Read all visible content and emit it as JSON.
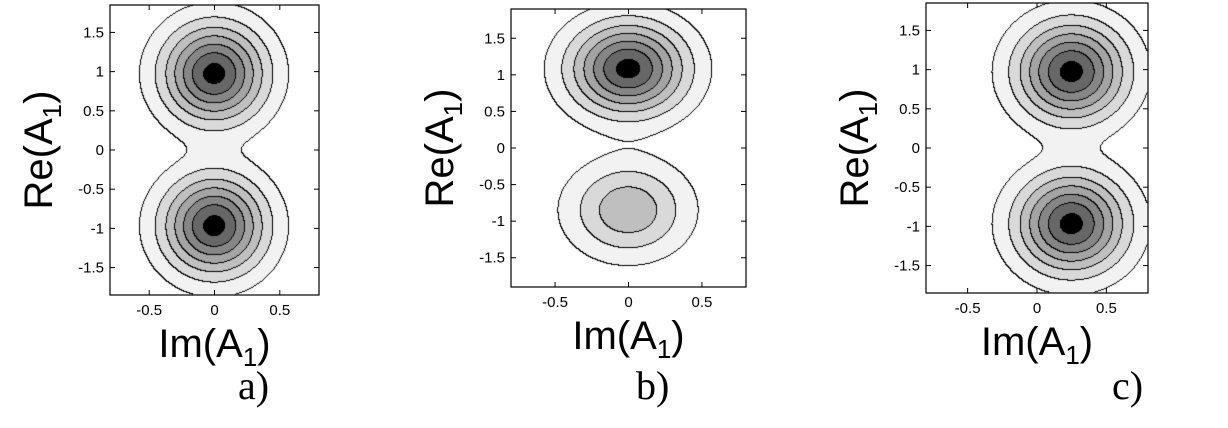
{
  "chart_data": [
    {
      "type": "contour",
      "panel_label": "a)",
      "xlabel": "Im(A₁)",
      "ylabel": "Re(A₁)",
      "xlim": [
        -0.8,
        0.8
      ],
      "ylim": [
        -1.85,
        1.85
      ],
      "xticks": [
        -0.5,
        0,
        0.5
      ],
      "xtick_labels": [
        "-0.5",
        "0",
        "0.5"
      ],
      "yticks": [
        -1.5,
        -1,
        -0.5,
        0,
        0.5,
        1,
        1.5
      ],
      "ytick_labels": [
        "-1.5",
        "-1",
        "-0.5",
        "0",
        "0.5",
        "1",
        "1.5"
      ],
      "maxima": [
        {
          "x": 0.0,
          "y": 0.97,
          "weight": 1.0
        },
        {
          "x": 0.0,
          "y": -0.97,
          "weight": 1.0
        }
      ],
      "saddle": {
        "x": 0.0,
        "y": 0.0
      }
    },
    {
      "type": "contour",
      "panel_label": "b)",
      "xlabel": "Im(A₁)",
      "ylabel": "Re(A₁)",
      "xlim": [
        -0.8,
        0.8
      ],
      "ylim": [
        -1.9,
        1.9
      ],
      "xticks": [
        -0.5,
        0,
        0.5
      ],
      "xtick_labels": [
        "-0.5",
        "0",
        "0.5"
      ],
      "yticks": [
        -1.5,
        -1,
        -0.5,
        0,
        0.5,
        1,
        1.5
      ],
      "ytick_labels": [
        "-1.5",
        "-1",
        "-0.5",
        "0",
        "0.5",
        "1",
        "1.5"
      ],
      "maxima": [
        {
          "x": 0.0,
          "y": 1.08,
          "weight": 1.0
        },
        {
          "x": 0.0,
          "y": -0.85,
          "weight": 0.45
        }
      ],
      "saddle": {
        "x": 0.0,
        "y": -0.3
      }
    },
    {
      "type": "contour",
      "panel_label": "c)",
      "xlabel": "Im(A₁)",
      "ylabel": "Re(A₁)",
      "xlim": [
        -0.8,
        0.8
      ],
      "ylim": [
        -1.85,
        1.85
      ],
      "xticks": [
        -0.5,
        0,
        0.5
      ],
      "xtick_labels": [
        "-0.5",
        "0",
        "0.5"
      ],
      "yticks": [
        -1.5,
        -1,
        -0.5,
        0,
        0.5,
        1,
        1.5
      ],
      "ytick_labels": [
        "-1.5",
        "-1",
        "-0.5",
        "0",
        "0.5",
        "1",
        "1.5"
      ],
      "maxima": [
        {
          "x": 0.25,
          "y": 0.97,
          "weight": 1.0
        },
        {
          "x": 0.25,
          "y": -0.97,
          "weight": 1.0
        }
      ],
      "saddle": {
        "x": 0.3,
        "y": 0.0
      }
    }
  ],
  "colors": {
    "levels": [
      "#ffffff",
      "#f2f2f2",
      "#d9d9d9",
      "#bfbfbf",
      "#a4a4a4",
      "#868686",
      "#676767",
      "#000000"
    ],
    "line": "#000000"
  }
}
